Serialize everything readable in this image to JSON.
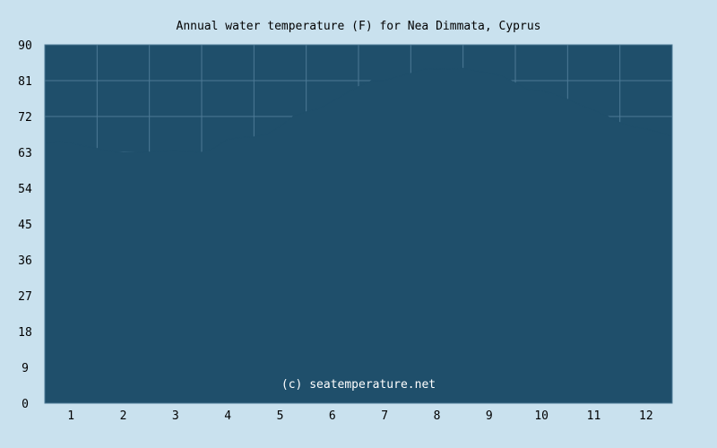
{
  "chart_data": {
    "type": "area",
    "title": "Annual water temperature (F) for Nea Dimmata, Cyprus",
    "xlabel": "",
    "ylabel": "",
    "x_ticks": [
      "1",
      "2",
      "3",
      "4",
      "5",
      "6",
      "7",
      "8",
      "9",
      "10",
      "11",
      "12"
    ],
    "y_ticks": [
      "0",
      "9",
      "18",
      "27",
      "36",
      "45",
      "54",
      "63",
      "72",
      "81",
      "90"
    ],
    "xlim": [
      0.5,
      12.5
    ],
    "ylim": [
      0,
      90
    ],
    "grid": true,
    "legend": "none",
    "x": [
      0.5,
      0.75,
      1.0,
      1.25,
      1.5,
      1.75,
      2.0,
      2.25,
      2.5,
      2.75,
      3.0,
      3.25,
      3.5,
      3.75,
      4.0,
      4.25,
      4.5,
      4.75,
      5.0,
      5.25,
      5.5,
      5.75,
      6.0,
      6.25,
      6.5,
      6.75,
      7.0,
      7.25,
      7.5,
      7.75,
      8.0,
      8.25,
      8.5,
      8.75,
      9.0,
      9.25,
      9.5,
      9.75,
      10.0,
      10.25,
      10.5,
      10.75,
      11.0,
      11.25,
      11.5,
      11.75,
      12.0,
      12.25,
      12.5
    ],
    "series": [
      {
        "values": [
          65.2,
          65.7,
          65.4,
          64.6,
          64.0,
          63.2,
          62.9,
          63.0,
          63.1,
          63.3,
          63.4,
          63.2,
          63.0,
          64.2,
          66.3,
          66.7,
          66.9,
          67.5,
          69.5,
          72.0,
          73.2,
          74.0,
          75.8,
          77.7,
          79.5,
          81.0,
          81.1,
          82.0,
          82.8,
          83.9,
          84.0,
          83.9,
          84.1,
          83.5,
          82.9,
          82.1,
          80.4,
          78.8,
          78.4,
          77.6,
          76.3,
          74.9,
          73.6,
          72.1,
          70.5,
          69.4,
          68.9,
          68.0,
          67.0
        ]
      }
    ],
    "colors": {
      "background": "#c9e1ee",
      "plot_fill": "#1f4f6b",
      "area_fill": "#1f4f6b",
      "grid": "#4d7a96",
      "text": "#000000",
      "watermark_text": "#ffffff"
    },
    "watermark": "(c) seatemperature.net"
  }
}
